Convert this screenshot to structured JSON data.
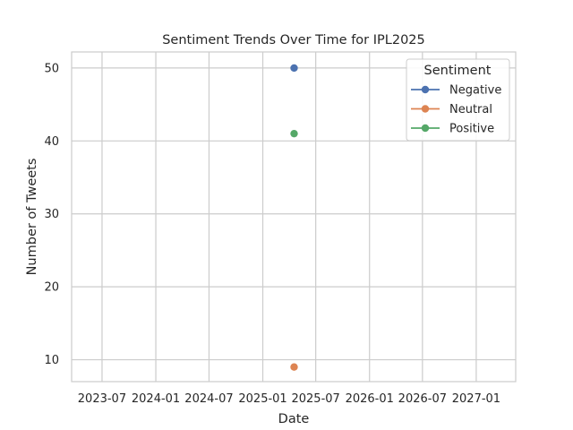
{
  "chart_data": {
    "type": "line",
    "title": "Sentiment Trends Over Time for IPL2025",
    "xlabel": "Date",
    "ylabel": "Number of Tweets",
    "x_ticks": [
      "2023-07",
      "2024-01",
      "2024-07",
      "2025-01",
      "2025-07",
      "2026-01",
      "2026-07",
      "2027-01"
    ],
    "y_ticks": [
      10,
      20,
      30,
      40,
      50
    ],
    "xlim": [
      "2023-03-19",
      "2027-05-16"
    ],
    "ylim": [
      7,
      52.2
    ],
    "grid": true,
    "legend": {
      "title": "Sentiment",
      "placement": "top-right"
    },
    "series": [
      {
        "name": "Negative",
        "color": "#4c72b0",
        "x": [
          "2025-04-18"
        ],
        "values": [
          50
        ]
      },
      {
        "name": "Neutral",
        "color": "#dd8452",
        "x": [
          "2025-04-18"
        ],
        "values": [
          9
        ]
      },
      {
        "name": "Positive",
        "color": "#55a868",
        "x": [
          "2025-04-18"
        ],
        "values": [
          41
        ]
      }
    ]
  }
}
